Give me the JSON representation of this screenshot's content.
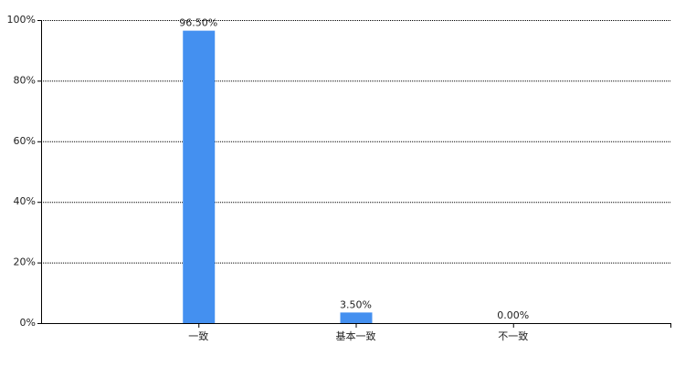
{
  "chart_data": {
    "type": "bar",
    "categories": [
      "一致",
      "基本一致",
      "不一致"
    ],
    "values": [
      96.5,
      3.5,
      0
    ],
    "value_labels": [
      "96.50%",
      "3.50%",
      "0.00%"
    ],
    "color": "#4490f0",
    "ylim": [
      0,
      100
    ],
    "yticks": [
      {
        "value": 0,
        "label": "0%"
      },
      {
        "value": 20,
        "label": "20%"
      },
      {
        "value": 40,
        "label": "40%"
      },
      {
        "value": 60,
        "label": "60%"
      },
      {
        "value": 80,
        "label": "80%"
      },
      {
        "value": 100,
        "label": "100%"
      }
    ],
    "grid": true
  }
}
